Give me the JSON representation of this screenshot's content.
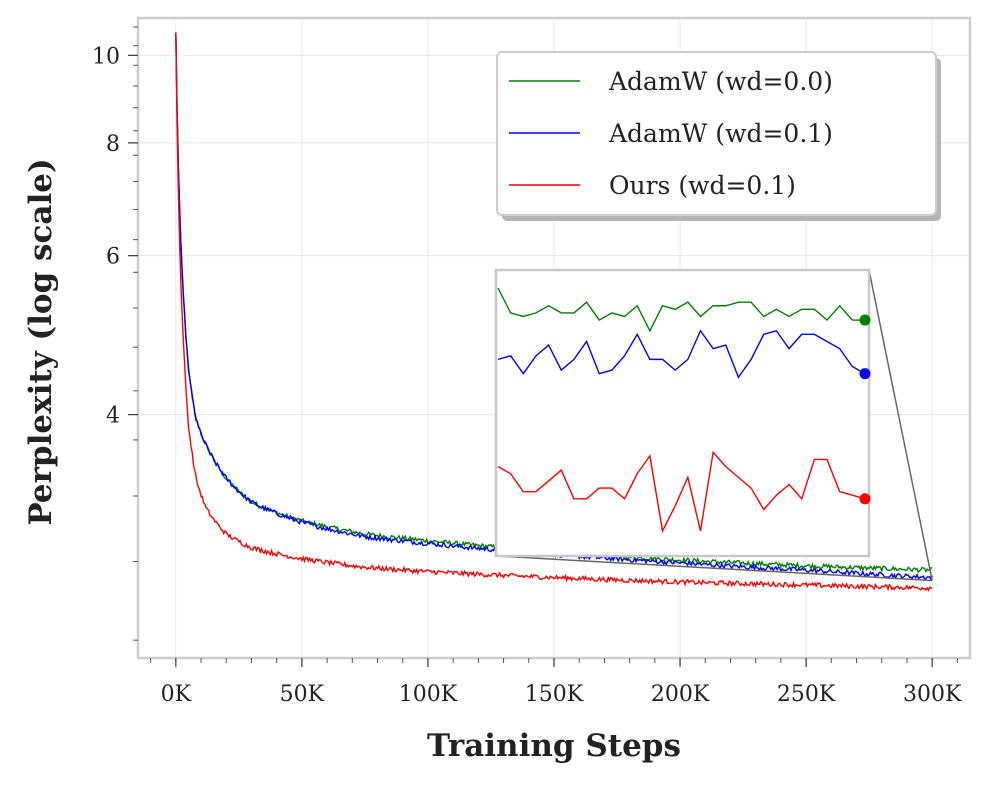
{
  "chart_data": {
    "type": "line",
    "title": "",
    "xlabel": "Training Steps",
    "ylabel": "Perplexity (log scale)",
    "y_scale": "log",
    "xlim": [
      -15000,
      315000
    ],
    "ylim": [
      2.15,
      11.0
    ],
    "x_ticks": [
      0,
      50000,
      100000,
      150000,
      200000,
      250000,
      300000
    ],
    "x_tick_labels": [
      "0K",
      "50K",
      "100K",
      "150K",
      "200K",
      "250K",
      "300K"
    ],
    "y_ticks": [
      4,
      6,
      8,
      10
    ],
    "y_tick_labels": [
      "4",
      "6",
      "8",
      "10"
    ],
    "grid": true,
    "legend_position": "upper right",
    "series": [
      {
        "name": "AdamW (wd=0.0)",
        "color": "#008000",
        "x": [
          0,
          2000,
          5000,
          8000,
          12000,
          20000,
          30000,
          50000,
          75000,
          100000,
          150000,
          200000,
          250000,
          300000
        ],
        "y": [
          10.6,
          6.2,
          4.5,
          3.95,
          3.7,
          3.4,
          3.2,
          3.05,
          2.95,
          2.9,
          2.82,
          2.76,
          2.72,
          2.69
        ]
      },
      {
        "name": "AdamW (wd=0.1)",
        "color": "#0000ff",
        "x": [
          0,
          2000,
          5000,
          8000,
          12000,
          20000,
          30000,
          50000,
          75000,
          100000,
          150000,
          200000,
          250000,
          300000
        ],
        "y": [
          10.6,
          6.2,
          4.5,
          3.95,
          3.7,
          3.4,
          3.2,
          3.04,
          2.93,
          2.88,
          2.8,
          2.74,
          2.69,
          2.64
        ]
      },
      {
        "name": "Ours (wd=0.1)",
        "color": "#ff0000",
        "x": [
          0,
          2000,
          5000,
          8000,
          12000,
          20000,
          30000,
          50000,
          75000,
          100000,
          150000,
          200000,
          250000,
          300000
        ],
        "y": [
          10.6,
          5.6,
          3.9,
          3.4,
          3.15,
          2.95,
          2.85,
          2.77,
          2.71,
          2.68,
          2.64,
          2.61,
          2.59,
          2.57
        ]
      }
    ],
    "inset": {
      "description_source": "zoom of final training steps",
      "x_range": [
        296000,
        300000
      ],
      "series": [
        {
          "name": "AdamW (wd=0.0)",
          "color": "#008000",
          "values": [
            0.6,
            0.53,
            0.52,
            0.53,
            0.55,
            0.53,
            0.53,
            0.56,
            0.51,
            0.53,
            0.52,
            0.55,
            0.48,
            0.55,
            0.54,
            0.56,
            0.52,
            0.55,
            0.55,
            0.56,
            0.56,
            0.52,
            0.54,
            0.52,
            0.54,
            0.54,
            0.51,
            0.55,
            0.51,
            0.51
          ]
        },
        {
          "name": "AdamW (wd=0.1)",
          "color": "#0000ff",
          "values": [
            0.4,
            0.41,
            0.36,
            0.41,
            0.44,
            0.37,
            0.4,
            0.45,
            0.36,
            0.37,
            0.41,
            0.47,
            0.4,
            0.4,
            0.37,
            0.4,
            0.48,
            0.43,
            0.44,
            0.35,
            0.4,
            0.47,
            0.48,
            0.43,
            0.47,
            0.47,
            0.45,
            0.43,
            0.38,
            0.36
          ]
        },
        {
          "name": "Ours (wd=0.1)",
          "color": "#ff0000",
          "values": [
            0.1,
            0.08,
            0.03,
            0.03,
            0.06,
            0.09,
            0.01,
            0.01,
            0.04,
            0.04,
            0.01,
            0.08,
            0.13,
            -0.08,
            -0.01,
            0.07,
            -0.08,
            0.14,
            0.1,
            0.07,
            0.04,
            -0.02,
            0.02,
            0.05,
            0.01,
            0.12,
            0.12,
            0.03,
            0.02,
            0.01
          ]
        }
      ]
    }
  }
}
